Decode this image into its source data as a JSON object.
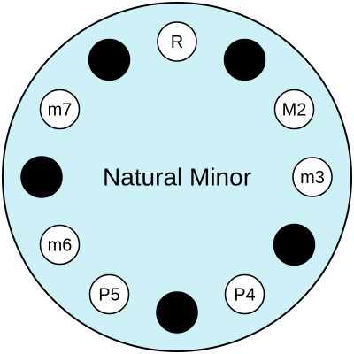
{
  "title": "Natural Minor",
  "colors": {
    "dial_fill": "#cef1f8",
    "dial_stroke": "#000000",
    "included_fill": "#ffffff",
    "excluded_fill": "#000000"
  },
  "degrees": [
    {
      "semitone": 0,
      "label": "R",
      "in_scale": true
    },
    {
      "semitone": 1,
      "label": "",
      "in_scale": false
    },
    {
      "semitone": 2,
      "label": "M2",
      "in_scale": true
    },
    {
      "semitone": 3,
      "label": "m3",
      "in_scale": true
    },
    {
      "semitone": 4,
      "label": "",
      "in_scale": false
    },
    {
      "semitone": 5,
      "label": "P4",
      "in_scale": true
    },
    {
      "semitone": 6,
      "label": "",
      "in_scale": false
    },
    {
      "semitone": 7,
      "label": "P5",
      "in_scale": true
    },
    {
      "semitone": 8,
      "label": "m6",
      "in_scale": true
    },
    {
      "semitone": 9,
      "label": "",
      "in_scale": false
    },
    {
      "semitone": 10,
      "label": "m7",
      "in_scale": true
    },
    {
      "semitone": 11,
      "label": "",
      "in_scale": false
    }
  ]
}
